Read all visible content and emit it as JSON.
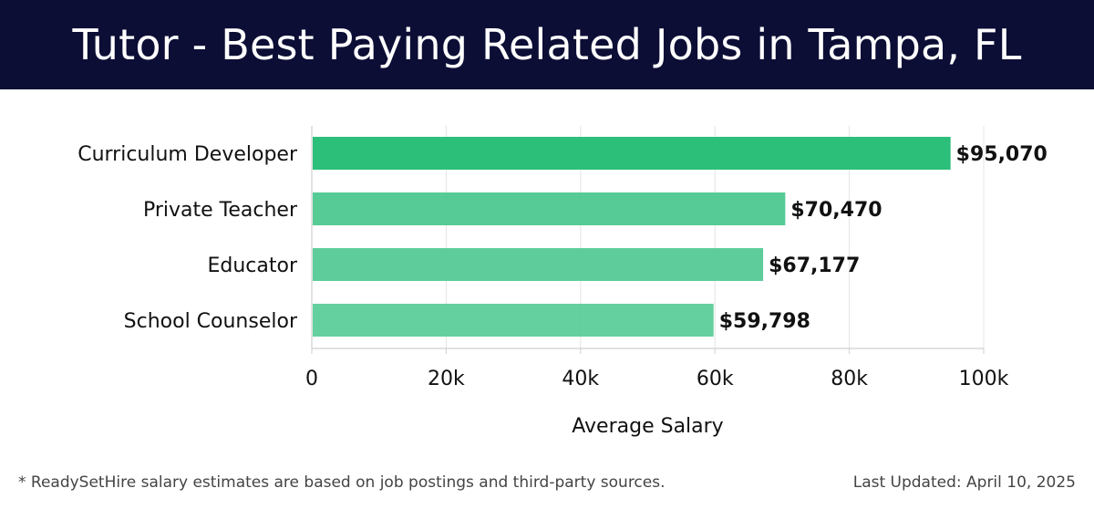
{
  "header": {
    "title": "Tutor - Best Paying Related Jobs in Tampa, FL"
  },
  "chart_data": {
    "type": "bar",
    "orientation": "horizontal",
    "categories": [
      "Curriculum Developer",
      "Private Teacher",
      "Educator",
      "School Counselor"
    ],
    "values": [
      95070,
      70470,
      67177,
      59798
    ],
    "value_labels": [
      "$95,070",
      "$70,470",
      "$67,177",
      "$59,798"
    ],
    "xlabel": "Average Salary",
    "ylabel": "",
    "xlim": [
      0,
      100000
    ],
    "xticks": [
      0,
      20000,
      40000,
      60000,
      80000,
      100000
    ],
    "xtick_labels": [
      "0",
      "20k",
      "40k",
      "60k",
      "80k",
      "100k"
    ],
    "grid": true,
    "colors": {
      "top_bar": "#2bbf7a",
      "bar": "#50c992",
      "grid": "#e4e4e4",
      "axis": "#cfcfcf",
      "text": "#111111"
    }
  },
  "footer": {
    "note": "* ReadySetHire salary estimates are based on job postings and third-party sources.",
    "updated": "Last Updated: April 10, 2025"
  }
}
